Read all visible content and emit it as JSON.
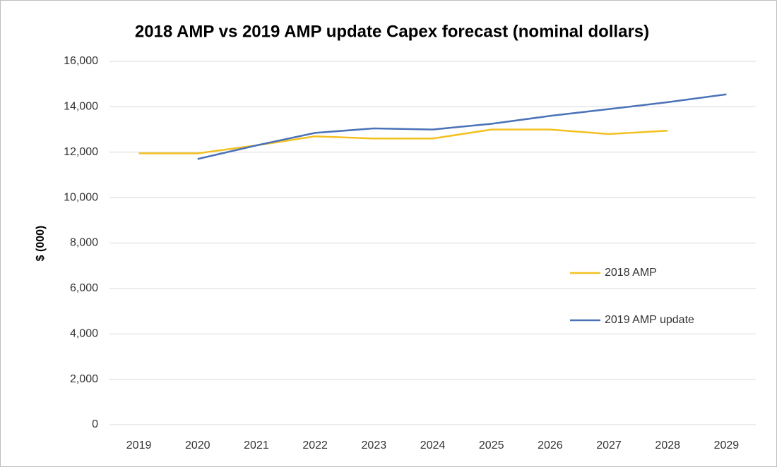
{
  "chart_data": {
    "type": "line",
    "title": "2018 AMP vs 2019 AMP update Capex forecast (nominal dollars)",
    "y_label": "$ (000)",
    "categories": [
      "2019",
      "2020",
      "2021",
      "2022",
      "2023",
      "2024",
      "2025",
      "2026",
      "2027",
      "2028",
      "2029"
    ],
    "series": [
      {
        "name": "2018 AMP",
        "color": "#f4c020",
        "values": [
          11950,
          11950,
          12300,
          12700,
          12600,
          12600,
          13000,
          13000,
          12800,
          12950,
          null
        ]
      },
      {
        "name": "2019 AMP update",
        "color": "#4a72b8",
        "values": [
          null,
          11700,
          12300,
          12850,
          13050,
          13000,
          13250,
          13600,
          13900,
          14200,
          14550
        ]
      }
    ],
    "ylim": [
      0,
      16000
    ],
    "yticks": [
      0,
      {
        "value": 2000,
        "label": "2,000"
      },
      {
        "value": 4000,
        "label": "4,000"
      },
      {
        "value": 6000,
        "label": "6,000"
      },
      {
        "value": 8000,
        "label": "8,000"
      },
      {
        "value": 10000,
        "label": "10,000"
      },
      {
        "value": 12000,
        "label": "12,000"
      },
      {
        "value": 14000,
        "label": "14,000"
      },
      {
        "value": 16000,
        "label": "16,000"
      }
    ],
    "grid": true,
    "legend": "right"
  }
}
